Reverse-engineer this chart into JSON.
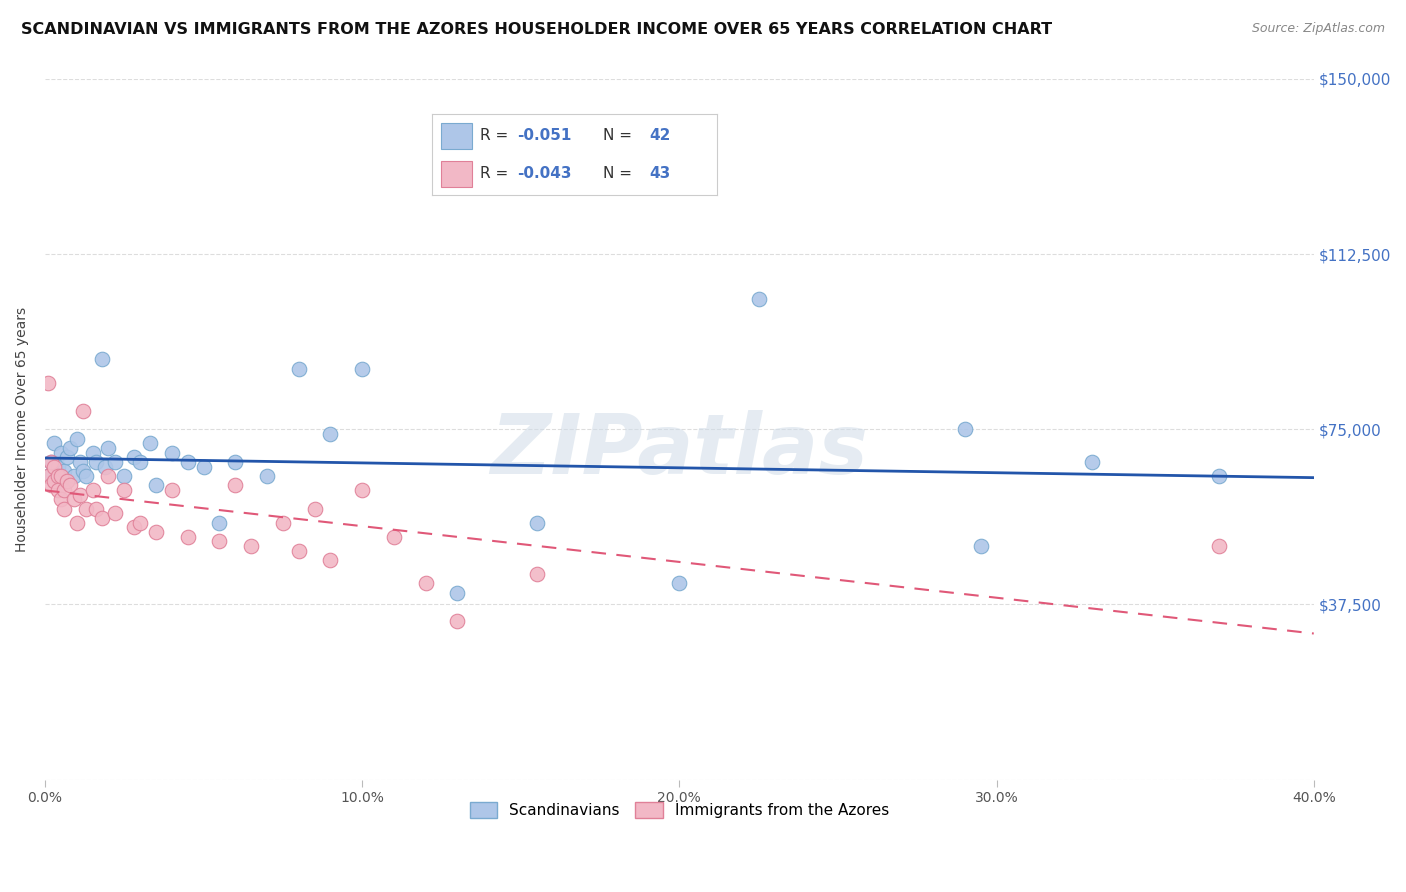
{
  "title": "SCANDINAVIAN VS IMMIGRANTS FROM THE AZORES HOUSEHOLDER INCOME OVER 65 YEARS CORRELATION CHART",
  "source": "Source: ZipAtlas.com",
  "ylabel": "Householder Income Over 65 years",
  "xlim": [
    0,
    0.4
  ],
  "ylim": [
    0,
    150000
  ],
  "xtick_vals": [
    0.0,
    0.1,
    0.2,
    0.3,
    0.4
  ],
  "xtick_labels": [
    "0.0%",
    "10.0%",
    "20.0%",
    "30.0%",
    "40.0%"
  ],
  "ytick_vals": [
    0,
    37500,
    75000,
    112500,
    150000
  ],
  "ytick_labels": [
    "",
    "$37,500",
    "$75,000",
    "$112,500",
    "$150,000"
  ],
  "blue_label": "Scandinavians",
  "pink_label": "Immigrants from the Azores",
  "blue_color": "#aec6e8",
  "pink_color": "#f2b8c6",
  "blue_edge": "#7aaad0",
  "pink_edge": "#e08098",
  "blue_line_color": "#2255aa",
  "pink_line_color": "#e05878",
  "background_color": "#ffffff",
  "grid_color": "#dddddd",
  "title_fontsize": 11.5,
  "axis_label_fontsize": 10,
  "tick_fontsize": 10,
  "blue_scatter_x": [
    0.001,
    0.002,
    0.003,
    0.004,
    0.005,
    0.005,
    0.006,
    0.007,
    0.008,
    0.009,
    0.01,
    0.011,
    0.012,
    0.013,
    0.015,
    0.016,
    0.018,
    0.019,
    0.02,
    0.022,
    0.025,
    0.028,
    0.03,
    0.033,
    0.035,
    0.04,
    0.045,
    0.05,
    0.055,
    0.06,
    0.07,
    0.08,
    0.09,
    0.1,
    0.13,
    0.155,
    0.2,
    0.225,
    0.29,
    0.295,
    0.33,
    0.37
  ],
  "blue_scatter_y": [
    65000,
    68000,
    72000,
    67000,
    70000,
    64000,
    66000,
    69000,
    71000,
    65000,
    73000,
    68000,
    66000,
    65000,
    70000,
    68000,
    90000,
    67000,
    71000,
    68000,
    65000,
    69000,
    68000,
    72000,
    63000,
    70000,
    68000,
    67000,
    55000,
    68000,
    65000,
    88000,
    74000,
    88000,
    40000,
    55000,
    42000,
    103000,
    75000,
    50000,
    68000,
    65000
  ],
  "pink_scatter_x": [
    0.001,
    0.001,
    0.002,
    0.002,
    0.003,
    0.003,
    0.004,
    0.004,
    0.005,
    0.005,
    0.006,
    0.006,
    0.007,
    0.008,
    0.009,
    0.01,
    0.011,
    0.012,
    0.013,
    0.015,
    0.016,
    0.018,
    0.02,
    0.022,
    0.025,
    0.028,
    0.03,
    0.035,
    0.04,
    0.045,
    0.055,
    0.06,
    0.065,
    0.075,
    0.08,
    0.085,
    0.09,
    0.1,
    0.11,
    0.12,
    0.13,
    0.155,
    0.37
  ],
  "pink_scatter_y": [
    85000,
    65000,
    68000,
    63000,
    67000,
    64000,
    65000,
    62000,
    60000,
    65000,
    62000,
    58000,
    64000,
    63000,
    60000,
    55000,
    61000,
    79000,
    58000,
    62000,
    58000,
    56000,
    65000,
    57000,
    62000,
    54000,
    55000,
    53000,
    62000,
    52000,
    51000,
    63000,
    50000,
    55000,
    49000,
    58000,
    47000,
    62000,
    52000,
    42000,
    34000,
    44000,
    50000
  ]
}
